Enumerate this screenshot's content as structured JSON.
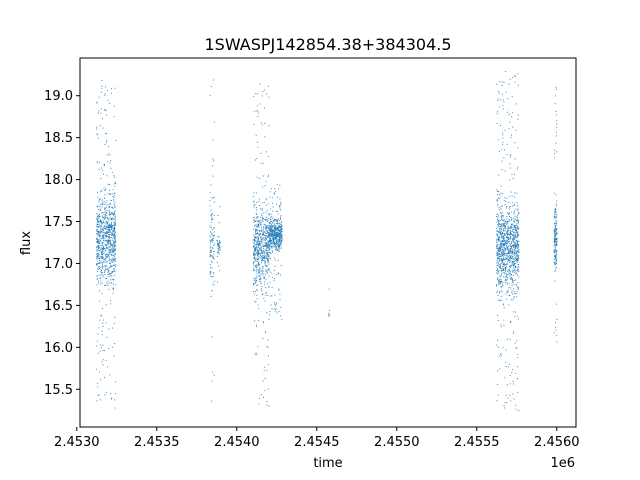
{
  "chart_data": {
    "type": "scatter",
    "title": "1SWASPJ142854.38+384304.5",
    "xlabel": "time",
    "ylabel": "flux",
    "x_offset_label": "1e6",
    "xlim": [
      2453020,
      2456120
    ],
    "ylim": [
      15.05,
      19.45
    ],
    "x_tick_labels": [
      "2.4530",
      "2.4535",
      "2.4540",
      "2.4545",
      "2.4550",
      "2.4555",
      "2.4560"
    ],
    "y_tick_labels": [
      "15.5",
      "16.0",
      "16.5",
      "17.0",
      "17.5",
      "18.0",
      "18.5",
      "19.0"
    ],
    "grid": false,
    "legend": "none",
    "marker_color": "#1f77b4",
    "series": [
      {
        "clusters": [
          {
            "x_range": [
              2453120,
              2453240
            ],
            "y_range": [
              15.25,
              19.25
            ],
            "y_center": 17.3,
            "n": 900
          },
          {
            "x_range": [
              2453828,
              2453858
            ],
            "y_range": [
              15.3,
              19.25
            ],
            "y_center": 17.3,
            "n": 110
          },
          {
            "x_range": [
              2453872,
              2453895
            ],
            "y_range": [
              16.6,
              17.7
            ],
            "y_center": 17.2,
            "n": 45
          },
          {
            "x_range": [
              2454100,
              2454200
            ],
            "y_range": [
              15.3,
              19.15
            ],
            "y_center": 17.2,
            "n": 650
          },
          {
            "x_range": [
              2454200,
              2454280
            ],
            "y_range": [
              16.3,
              18.0
            ],
            "y_center": 17.35,
            "n": 500
          },
          {
            "x_range": [
              2454570,
              2454580
            ],
            "y_range": [
              16.15,
              16.8
            ],
            "y_center": 16.4,
            "n": 6
          },
          {
            "x_range": [
              2455620,
              2455760
            ],
            "y_range": [
              15.25,
              19.3
            ],
            "y_center": 17.2,
            "n": 1100
          },
          {
            "x_range": [
              2455980,
              2455998
            ],
            "y_range": [
              16.0,
              19.2
            ],
            "y_center": 17.3,
            "n": 180
          }
        ]
      }
    ]
  }
}
